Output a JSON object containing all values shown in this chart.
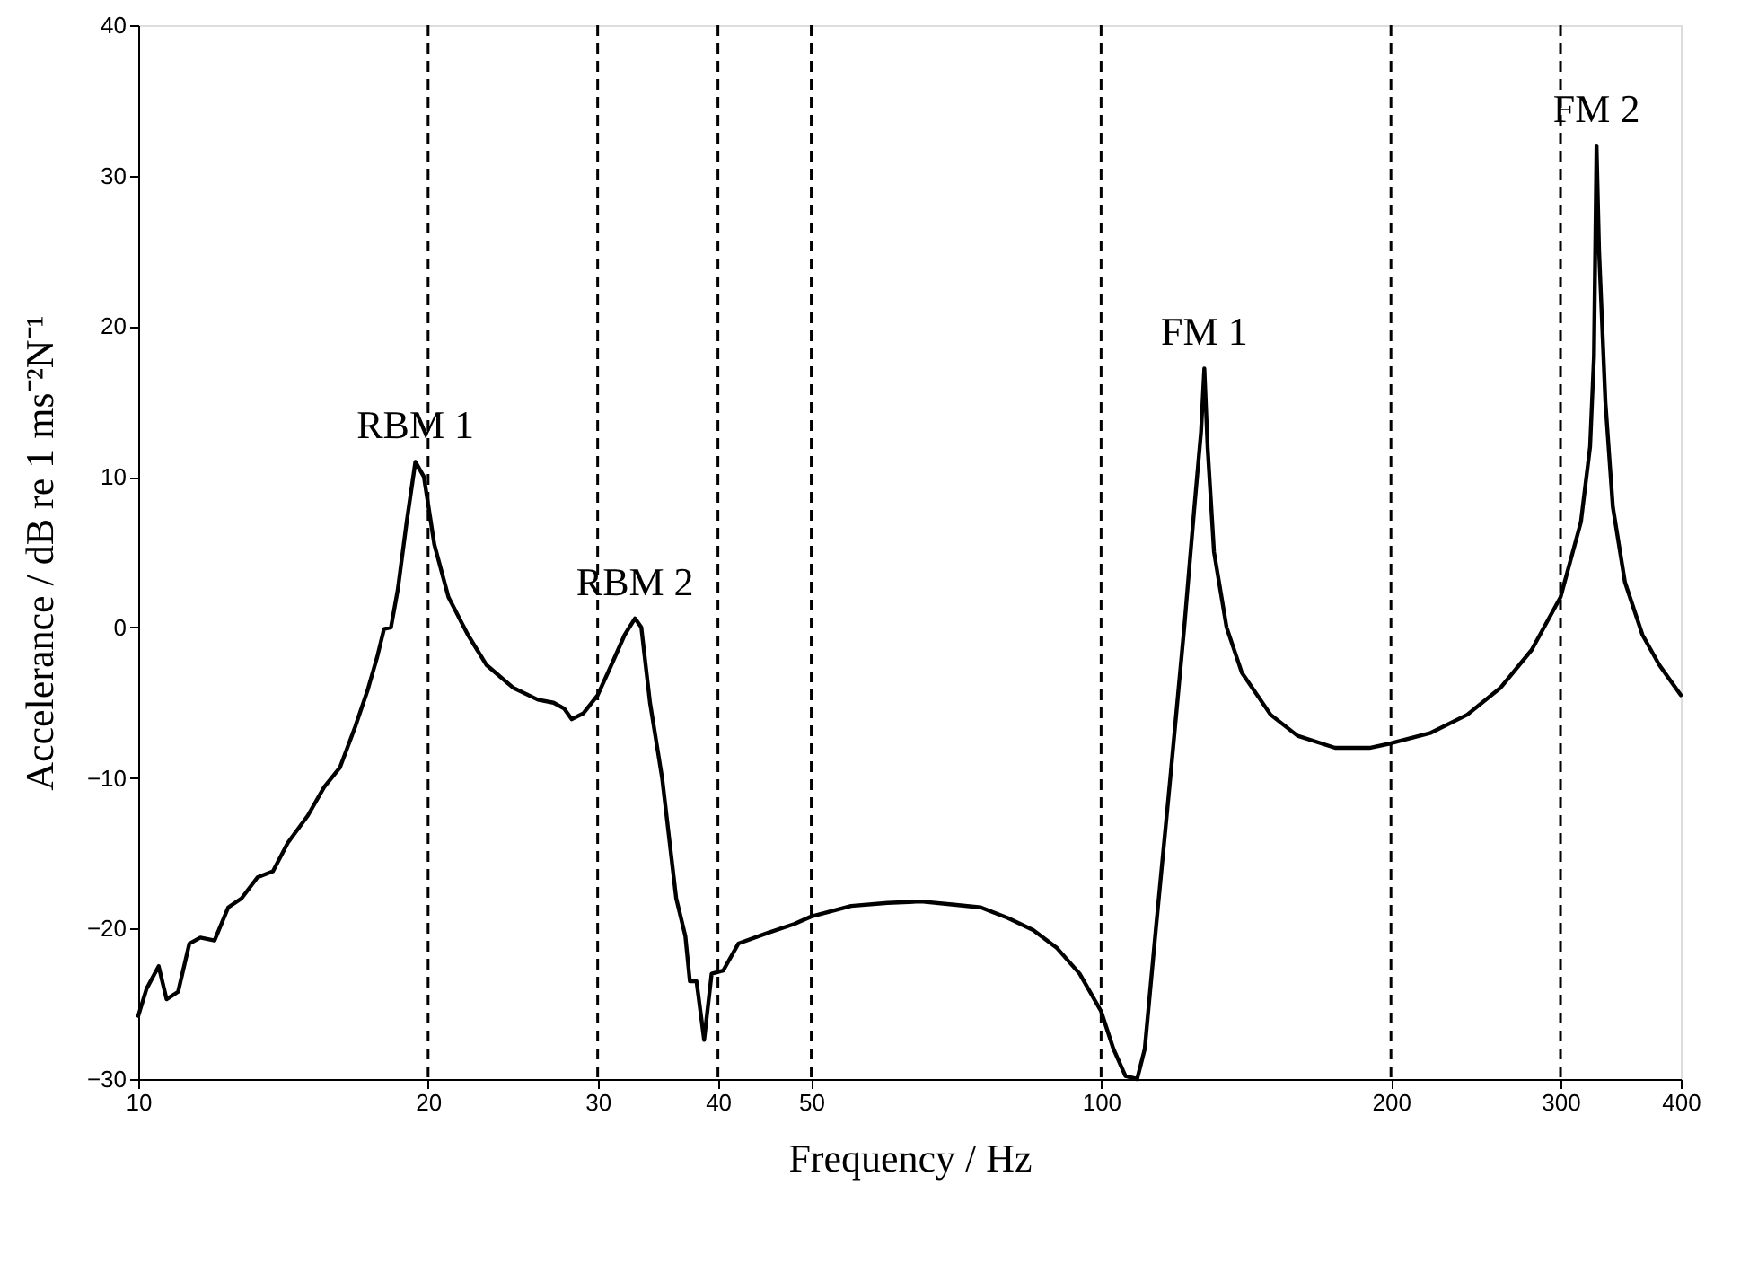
{
  "chart_data": {
    "type": "line",
    "xlabel": "Frequency / Hz",
    "ylabel": "Accelerance / dB re 1 ms⁻²N⁻¹",
    "log": "x",
    "grid": false,
    "line_style": "solid",
    "marker": "none",
    "xlim": [
      10,
      400
    ],
    "xticks": [
      10,
      20,
      30,
      40,
      50,
      100,
      200,
      300,
      400
    ],
    "ylim": [
      -30,
      40
    ],
    "yticks": [
      -30,
      -20,
      -10,
      0,
      10,
      20,
      30,
      40
    ],
    "series": [
      {
        "color": "#000000",
        "x": [
          10,
          10.2,
          10.5,
          10.7,
          11,
          11.3,
          11.6,
          12,
          12.4,
          12.8,
          13.3,
          13.8,
          14.3,
          15,
          15.6,
          16.2,
          16.8,
          17.3,
          17.7,
          18,
          18.3,
          18.6,
          19,
          19.4,
          19.8,
          20.3,
          21,
          22,
          23,
          24.5,
          26,
          27,
          27.7,
          28.2,
          29,
          30,
          31,
          32,
          32.8,
          33.3,
          34,
          35,
          36.2,
          37,
          37.4,
          38,
          38.7,
          39.4,
          40.5,
          42,
          45,
          48,
          50,
          55,
          60,
          65,
          70,
          75,
          80,
          85,
          90,
          95,
          100,
          103,
          106,
          109,
          111,
          114,
          118,
          122,
          125,
          127,
          128,
          129,
          131,
          135,
          140,
          150,
          160,
          175,
          190,
          200,
          220,
          240,
          260,
          280,
          300,
          315,
          322,
          325,
          327,
          329,
          334,
          340,
          350,
          365,
          380,
          400
        ],
        "values": [
          -25.8,
          -24,
          -22.5,
          -24.7,
          -24.2,
          -21,
          -20.6,
          -20.8,
          -18.6,
          -18,
          -16.6,
          -16.2,
          -14.3,
          -12.5,
          -10.6,
          -9.3,
          -6.6,
          -4.2,
          -2,
          -0.1,
          0,
          2.5,
          7,
          11,
          10,
          5.5,
          2,
          -0.5,
          -2.5,
          -4,
          -4.8,
          -5,
          -5.4,
          -6.1,
          -5.7,
          -4.5,
          -2.5,
          -0.5,
          0.6,
          0,
          -5,
          -10,
          -18,
          -20.5,
          -23.5,
          -23.5,
          -27.4,
          -23,
          -22.8,
          -21,
          -20.3,
          -19.7,
          -19.2,
          -18.5,
          -18.3,
          -18.2,
          -18.4,
          -18.6,
          -19.3,
          -20.1,
          -21.3,
          -23,
          -25.5,
          -28,
          -29.8,
          -30,
          -28,
          -20,
          -10,
          0,
          8,
          13,
          17.2,
          12,
          5,
          0,
          -3,
          -5.8,
          -7.2,
          -8,
          -8,
          -7.7,
          -7,
          -5.8,
          -4,
          -1.5,
          2,
          7,
          12,
          18,
          32,
          25,
          15,
          8,
          3,
          -0.5,
          -2.5,
          -4.5
        ]
      }
    ],
    "ref_lines": [
      {
        "axis": "x",
        "value": 20,
        "line_style": "dashed"
      },
      {
        "axis": "x",
        "value": 30,
        "line_style": "dashed"
      },
      {
        "axis": "x",
        "value": 40,
        "line_style": "dashed"
      },
      {
        "axis": "x",
        "value": 50,
        "line_style": "dashed"
      },
      {
        "axis": "x",
        "value": 100,
        "line_style": "dashed"
      },
      {
        "axis": "x",
        "value": 200,
        "line_style": "dashed"
      },
      {
        "axis": "x",
        "value": 300,
        "line_style": "dashed"
      }
    ],
    "annotations": [
      {
        "text": "RBM 1",
        "x": 19.4,
        "y": 11
      },
      {
        "text": "RBM 2",
        "x": 32.8,
        "y": 0.6
      },
      {
        "text": "FM 1",
        "x": 128,
        "y": 17.2
      },
      {
        "text": "FM 2",
        "x": 327,
        "y": 32
      }
    ]
  }
}
